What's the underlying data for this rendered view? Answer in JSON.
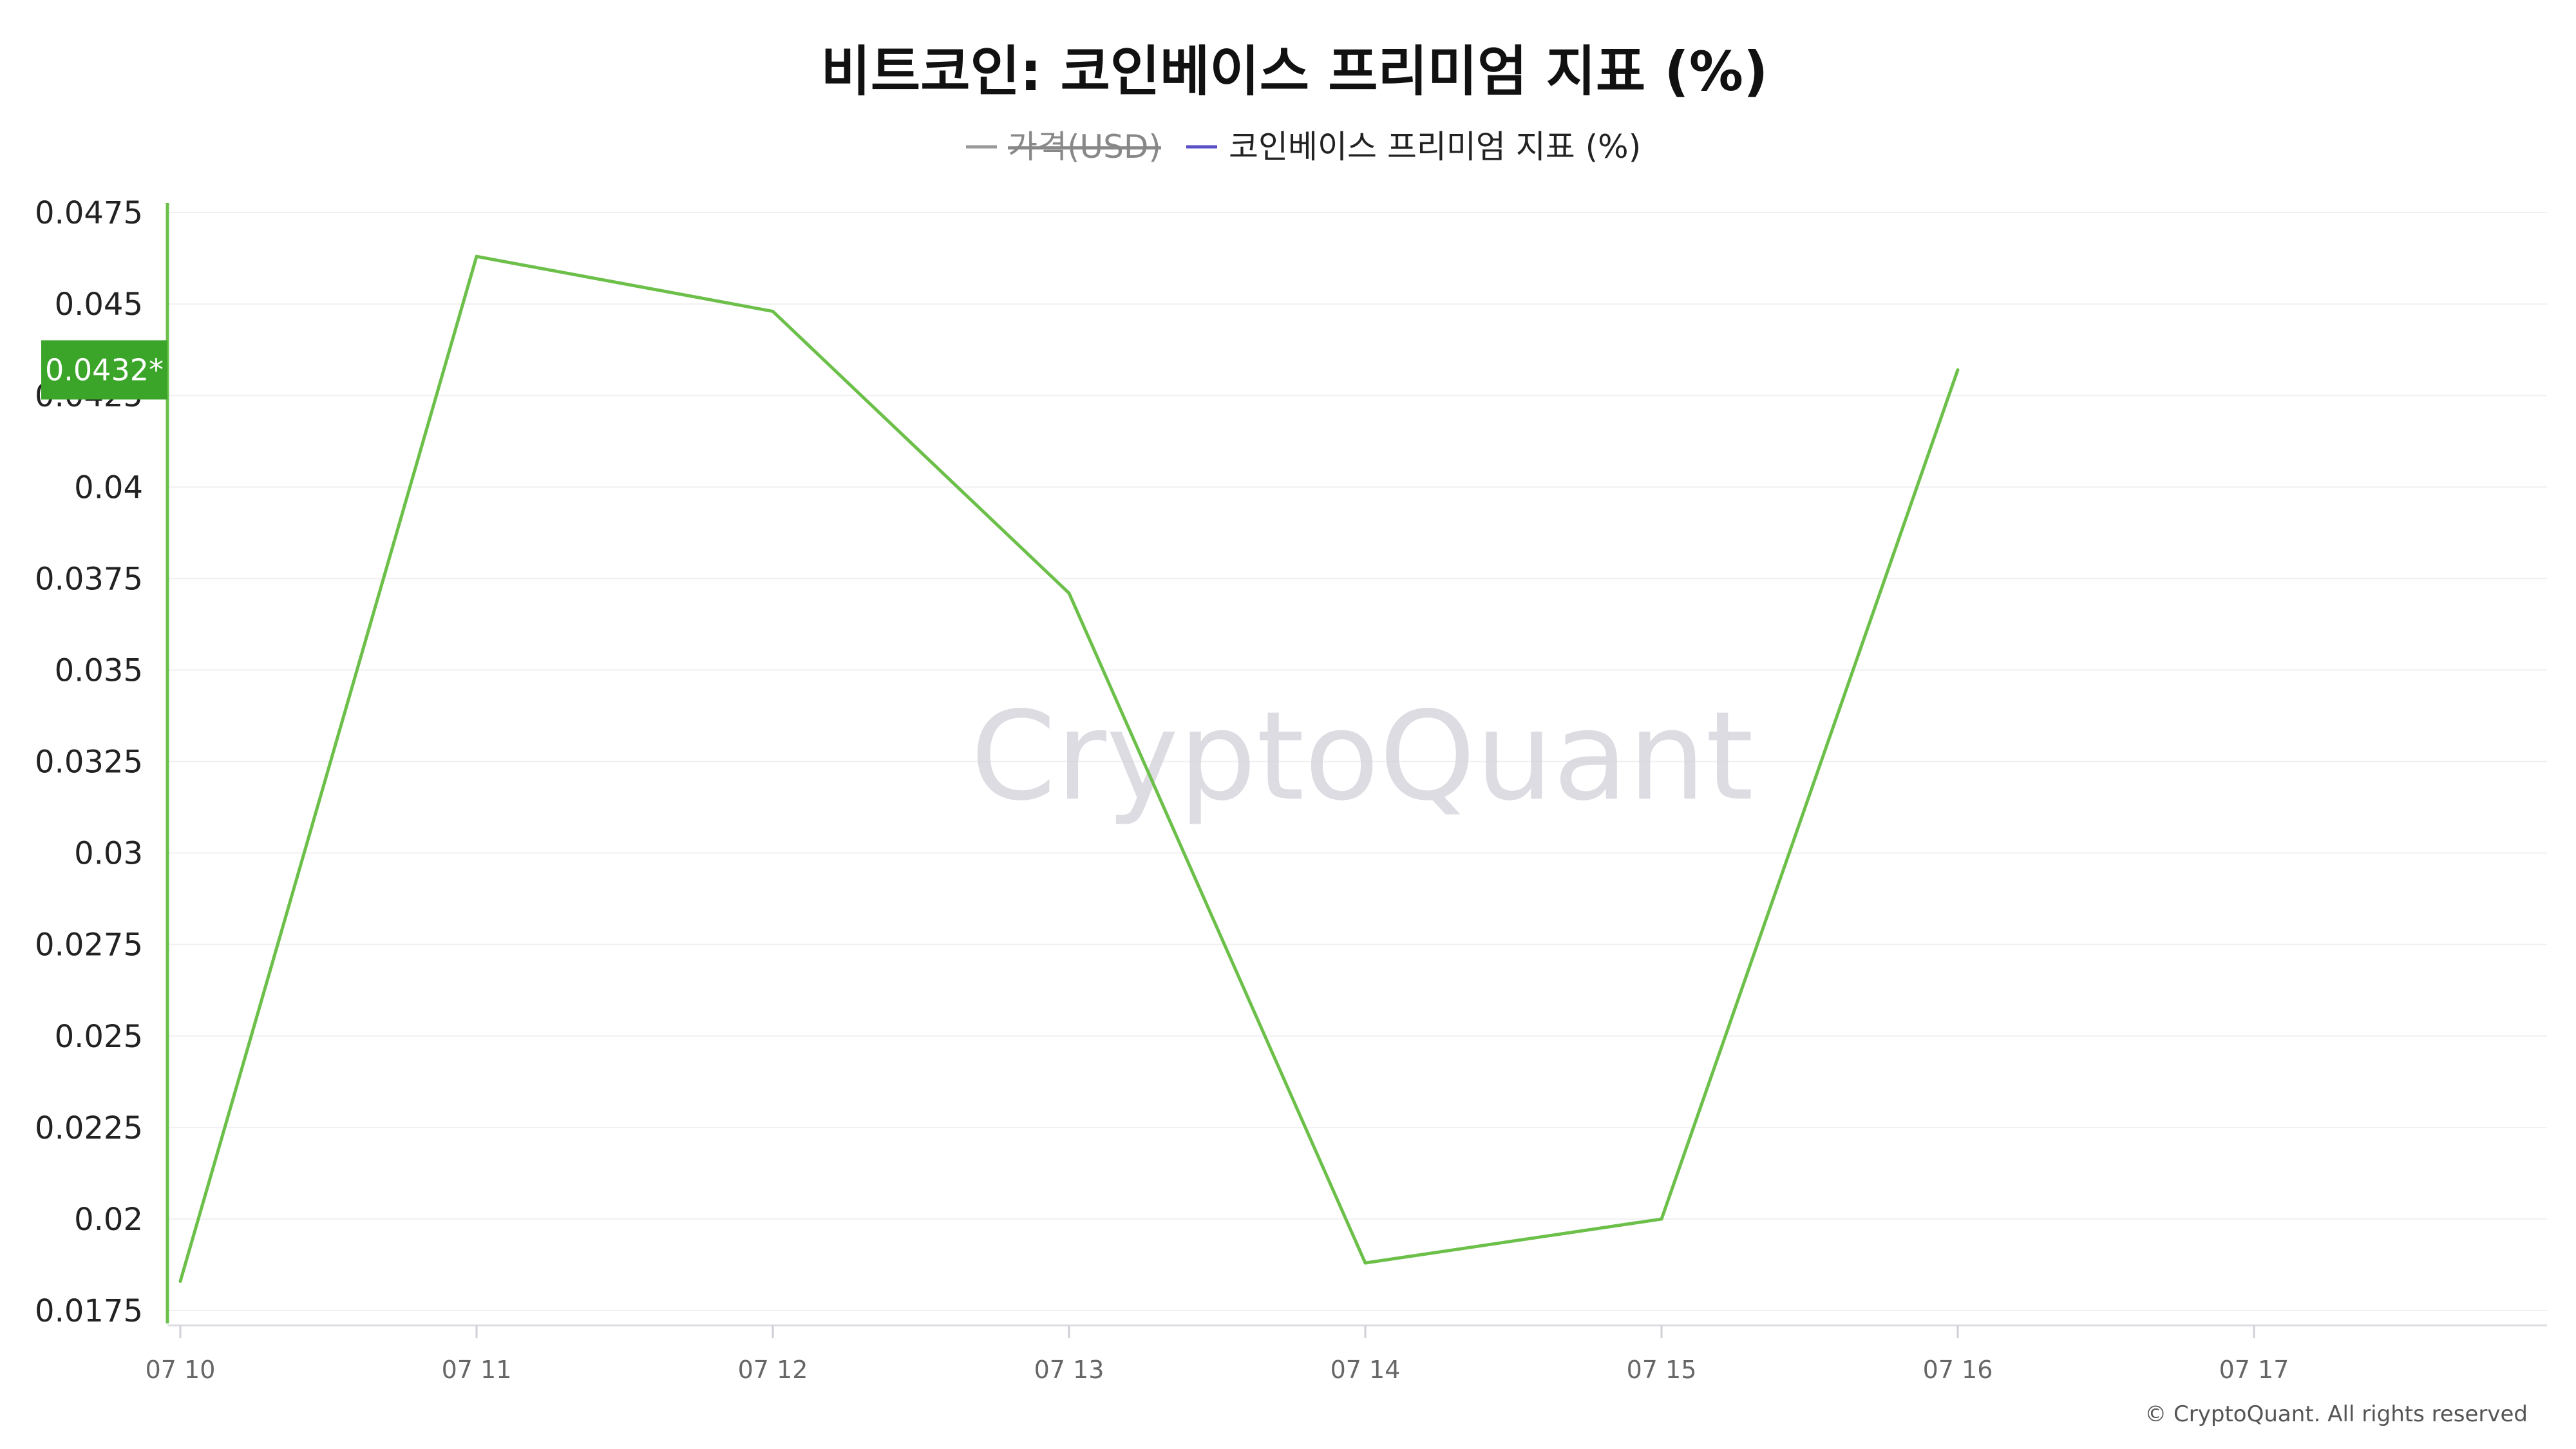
{
  "chart_data": {
    "type": "line",
    "title": "비트코인: 코인베이스 프리미엄 지표 (%)",
    "legend": {
      "placement": "top-center",
      "entries": [
        {
          "label": "가격(USD)",
          "color": "#9a9a9a",
          "disabled": true
        },
        {
          "label": "코인베이스 프리미엄 지표 (%)",
          "color": "#5b4fc7",
          "disabled": false
        }
      ]
    },
    "x_ticks": [
      "07 10",
      "07 11",
      "07 12",
      "07 13",
      "07 14",
      "07 15",
      "07 16",
      "07 17"
    ],
    "xlim": [
      0,
      8
    ],
    "y_ticks": [
      "0.0175",
      "0.02",
      "0.0225",
      "0.025",
      "0.0275",
      "0.03",
      "0.0325",
      "0.035",
      "0.0375",
      "0.04",
      "0.0425",
      "0.045",
      "0.0475"
    ],
    "ylim": [
      0.0175,
      0.0475
    ],
    "grid": true,
    "series": [
      {
        "name": "코인베이스 프리미엄 지표 (%)",
        "color": "#6cc04a",
        "x": [
          0,
          1,
          2,
          3,
          4,
          5,
          6
        ],
        "values": [
          0.0183,
          0.0463,
          0.0448,
          0.0371,
          0.0188,
          0.02,
          0.0432
        ]
      }
    ],
    "current_value_label": "0.0432*",
    "current_value": 0.0432,
    "badge_color": "#3ba52a",
    "axis_color": "#6cc04a",
    "watermark": "CryptoQuant",
    "copyright": "© CryptoQuant. All rights reserved"
  }
}
